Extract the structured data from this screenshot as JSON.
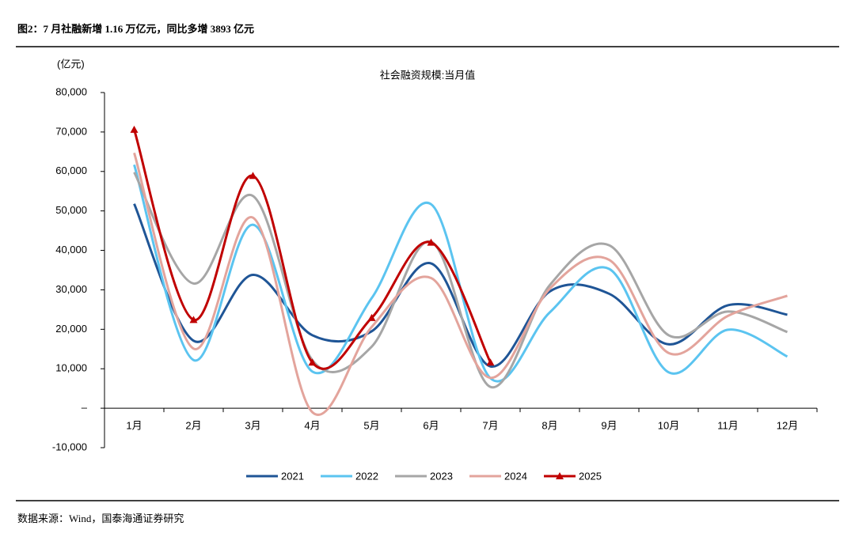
{
  "header": {
    "title": "图2：7 月社融新增 1.16 万亿元，同比多增 3893 亿元"
  },
  "chart_data": {
    "type": "line",
    "title": "社会融资规模:当月值",
    "y_label": "(亿元)",
    "categories": [
      "1月",
      "2月",
      "3月",
      "4月",
      "5月",
      "6月",
      "7月",
      "8月",
      "9月",
      "10月",
      "11月",
      "12月"
    ],
    "series": [
      {
        "name": "2021",
        "color": "#1f5596",
        "values": [
          51800,
          17100,
          33800,
          18500,
          19500,
          36700,
          10600,
          29600,
          29000,
          16200,
          26100,
          23700
        ]
      },
      {
        "name": "2022",
        "color": "#5bc4f0",
        "values": [
          61700,
          12200,
          46500,
          9300,
          27900,
          51700,
          7600,
          24300,
          35300,
          9100,
          19900,
          13100
        ]
      },
      {
        "name": "2023",
        "color": "#a6a6a6",
        "values": [
          59800,
          31600,
          53800,
          12200,
          15600,
          42200,
          5400,
          31200,
          41300,
          18500,
          24500,
          19300
        ]
      },
      {
        "name": "2024",
        "color": "#e3a49c",
        "values": [
          64700,
          15100,
          48300,
          -1000,
          20600,
          33000,
          7700,
          30300,
          37600,
          14000,
          23400,
          28500
        ]
      },
      {
        "name": "2025",
        "color": "#c00000",
        "marker": "triangle",
        "values": [
          70600,
          22400,
          58900,
          11600,
          22900,
          42000,
          11600,
          null,
          null,
          null,
          null,
          null
        ]
      }
    ],
    "ylim": [
      -10000,
      80000
    ],
    "yticks": [
      {
        "value": -10000,
        "label": "-10,000"
      },
      {
        "value": 0,
        "label": "–"
      },
      {
        "value": 10000,
        "label": "10,000"
      },
      {
        "value": 20000,
        "label": "20,000"
      },
      {
        "value": 30000,
        "label": "30,000"
      },
      {
        "value": 40000,
        "label": "40,000"
      },
      {
        "value": 50000,
        "label": "50,000"
      },
      {
        "value": 60000,
        "label": "60,000"
      },
      {
        "value": 70000,
        "label": "70,000"
      },
      {
        "value": 80000,
        "label": "80,000"
      }
    ],
    "legend": "bottom",
    "smooth": true
  },
  "footer": {
    "source": "数据来源：Wind，国泰海通证券研究"
  }
}
